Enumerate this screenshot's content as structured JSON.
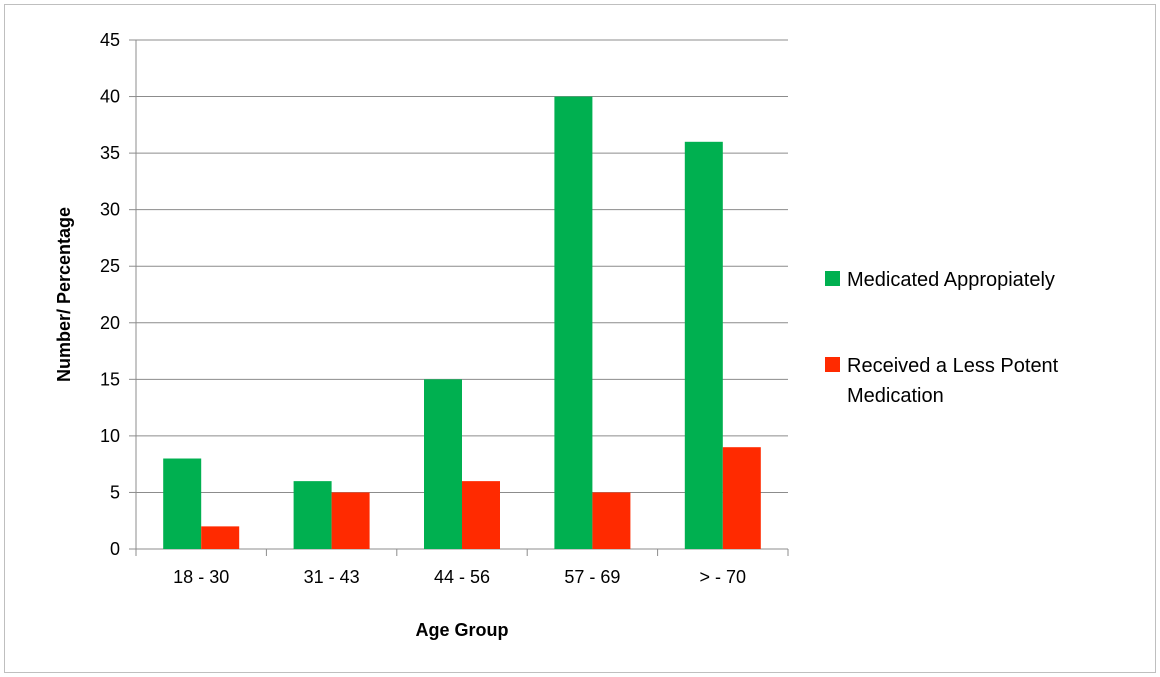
{
  "chart_data": {
    "type": "bar",
    "title": "",
    "xlabel": "Age Group",
    "ylabel": "Number/ Percentage",
    "categories": [
      "18 - 30",
      "31 - 43",
      "44 - 56",
      "57 - 69",
      "> - 70"
    ],
    "series": [
      {
        "name": "Medicated Appropiately",
        "color": "#00b050",
        "values": [
          8,
          6,
          15,
          40,
          36
        ]
      },
      {
        "name": "Received a Less Potent Medication",
        "color": "#ff2a00",
        "values": [
          2,
          5,
          6,
          5,
          9
        ]
      }
    ],
    "ylim": [
      0,
      45
    ],
    "yticks": [
      0,
      5,
      10,
      15,
      20,
      25,
      30,
      35,
      40,
      45
    ],
    "grid": true,
    "legend_position": "right"
  }
}
